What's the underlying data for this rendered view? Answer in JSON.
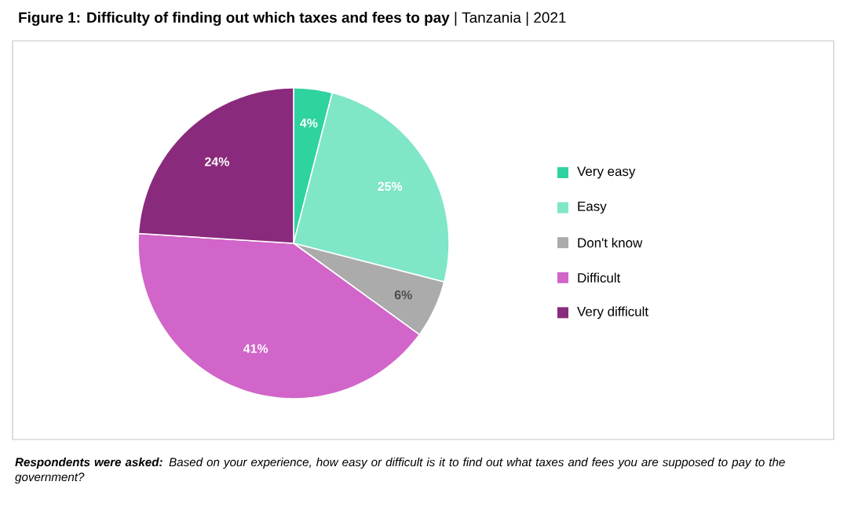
{
  "chart_data": {
    "type": "pie",
    "title": "**Figure 1: Difficulty of finding out which taxes and fees to pay** | Tanzania | 2021",
    "categories": [
      "Very easy",
      "Easy",
      "Don't know",
      "Difficult",
      "Very difficult"
    ],
    "values": [
      4,
      25,
      6,
      41,
      24
    ],
    "value_labels": [
      "4%",
      "25%",
      "6%",
      "41%",
      "24%"
    ],
    "colors": [
      "#2ed3a0",
      "#7fe6c8",
      "#ababab",
      "#d165c9",
      "#8a2a7c"
    ],
    "legend": "right",
    "annotations": [
      "**Respondents were asked:** Based on your experience, how easy or difficult is it to find out what taxes and fees you are supposed to pay to the government?"
    ]
  }
}
